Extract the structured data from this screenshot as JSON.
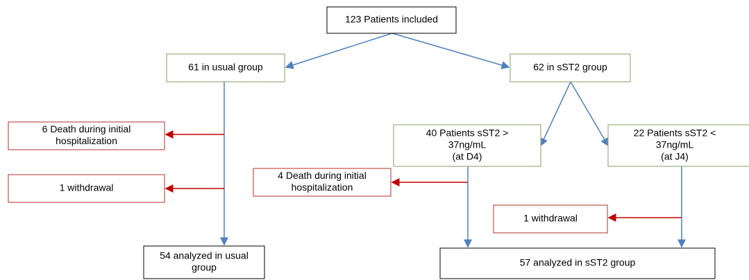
{
  "nodes": [
    {
      "lines": [
        "123 Patients included"
      ]
    },
    {
      "lines": [
        "61 in usual group"
      ]
    },
    {
      "lines": [
        "62 in sST2 group"
      ]
    },
    {
      "lines": [
        "6 Death during initial",
        "hospitalization"
      ]
    },
    {
      "lines": [
        "1 withdrawal"
      ]
    },
    {
      "lines": [
        "40 Patients sST2 >",
        "37ng/mL",
        "(at D4)"
      ]
    },
    {
      "lines": [
        "22 Patients sST2 <",
        "37ng/mL",
        "(at J4)"
      ]
    },
    {
      "lines": [
        "4 Death during initial",
        "hospitalization"
      ]
    },
    {
      "lines": [
        "1 withdrawal"
      ]
    },
    {
      "lines": [
        "54 analyzed in usual",
        "group"
      ]
    },
    {
      "lines": [
        "57 analyzed in sST2 group"
      ]
    }
  ]
}
